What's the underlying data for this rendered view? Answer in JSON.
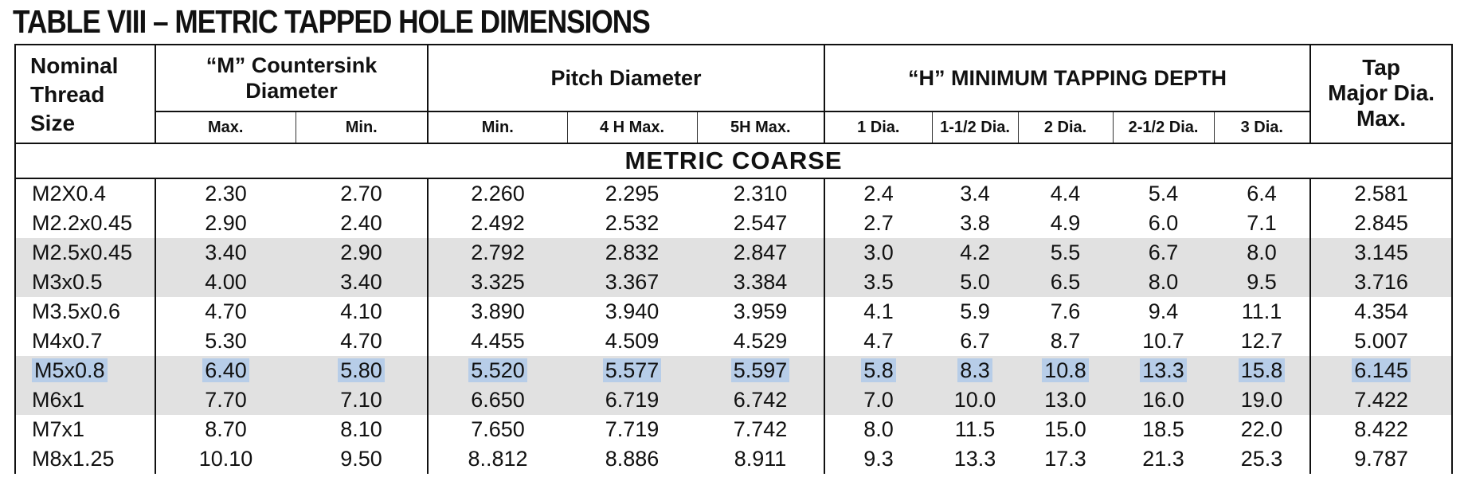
{
  "title": "TABLE VIII – METRIC TAPPED HOLE DIMENSIONS",
  "headers": {
    "nominal": [
      "Nominal",
      "Thread",
      "Size"
    ],
    "countersink": [
      "“M” Countersink",
      "Diameter"
    ],
    "pitch": "Pitch Diameter",
    "tapping": "“H” MINIMUM TAPPING DEPTH",
    "tap_major": [
      "Tap",
      "Major Dia.",
      "Max."
    ]
  },
  "subheaders": [
    "Max.",
    "Min.",
    "Min.",
    "4 H Max.",
    "5H Max.",
    "1 Dia.",
    "1-1/2 Dia.",
    "2 Dia.",
    "2-1/2 Dia.",
    "3 Dia."
  ],
  "section": "METRIC COARSE",
  "rows": [
    [
      "M2X0.4",
      "2.30",
      "2.70",
      "2.260",
      "2.295",
      "2.310",
      "2.4",
      "3.4",
      "4.4",
      "5.4",
      "6.4",
      "2.581"
    ],
    [
      "M2.2x0.45",
      "2.90",
      "2.40",
      "2.492",
      "2.532",
      "2.547",
      "2.7",
      "3.8",
      "4.9",
      "6.0",
      "7.1",
      "2.845"
    ],
    [
      "M2.5x0.45",
      "3.40",
      "2.90",
      "2.792",
      "2.832",
      "2.847",
      "3.0",
      "4.2",
      "5.5",
      "6.7",
      "8.0",
      "3.145"
    ],
    [
      "M3x0.5",
      "4.00",
      "3.40",
      "3.325",
      "3.367",
      "3.384",
      "3.5",
      "5.0",
      "6.5",
      "8.0",
      "9.5",
      "3.716"
    ],
    [
      "M3.5x0.6",
      "4.70",
      "4.10",
      "3.890",
      "3.940",
      "3.959",
      "4.1",
      "5.9",
      "7.6",
      "9.4",
      "11.1",
      "4.354"
    ],
    [
      "M4x0.7",
      "5.30",
      "4.70",
      "4.455",
      "4.509",
      "4.529",
      "4.7",
      "6.7",
      "8.7",
      "10.7",
      "12.7",
      "5.007"
    ],
    [
      "M5x0.8",
      "6.40",
      "5.80",
      "5.520",
      "5.577",
      "5.597",
      "5.8",
      "8.3",
      "10.8",
      "13.3",
      "15.8",
      "6.145"
    ],
    [
      "M6x1",
      "7.70",
      "7.10",
      "6.650",
      "6.719",
      "6.742",
      "7.0",
      "10.0",
      "13.0",
      "16.0",
      "19.0",
      "7.422"
    ],
    [
      "M7x1",
      "8.70",
      "8.10",
      "7.650",
      "7.719",
      "7.742",
      "8.0",
      "11.5",
      "15.0",
      "18.5",
      "22.0",
      "8.422"
    ],
    [
      "M8x1.25",
      "10.10",
      "9.50",
      "8..812",
      "8.886",
      "8.911",
      "9.3",
      "13.3",
      "17.3",
      "21.3",
      "25.3",
      "9.787"
    ]
  ],
  "shaded_rows": [
    2,
    3,
    6,
    7
  ],
  "highlighted_row": 6,
  "colors": {
    "shade": "#e1e1e1",
    "highlight": "#b7cde8",
    "border": "#111111"
  }
}
